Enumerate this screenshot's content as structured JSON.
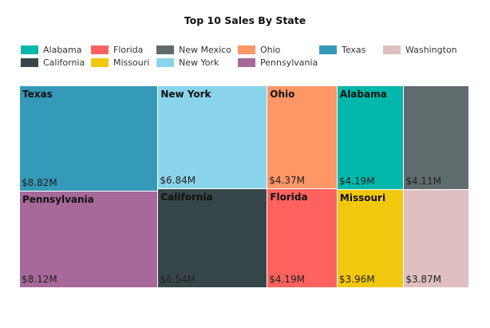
{
  "chart_data": {
    "type": "treemap",
    "title": "Top 10 Sales By State",
    "legend_position": "top-left",
    "legend_order": [
      "Alabama",
      "Florida",
      "New Mexico",
      "Ohio",
      "Texas",
      "Washington",
      "California",
      "Missouri",
      "New York",
      "Pennsylvania"
    ],
    "items": [
      {
        "name": "Texas",
        "value": 8.82,
        "label": "$8.82M",
        "color": "#3599b8",
        "show_name": true
      },
      {
        "name": "Pennsylvania",
        "value": 8.12,
        "label": "$8.12M",
        "color": "#a66999",
        "show_name": true
      },
      {
        "name": "New York",
        "value": 6.84,
        "label": "$6.84M",
        "color": "#8ad4eb",
        "show_name": true
      },
      {
        "name": "California",
        "value": 6.54,
        "label": "$6.54M",
        "color": "#374649",
        "show_name": true
      },
      {
        "name": "Ohio",
        "value": 4.37,
        "label": "$4.37M",
        "color": "#fe9666",
        "show_name": true
      },
      {
        "name": "Florida",
        "value": 4.19,
        "label": "$4.19M",
        "color": "#fd625e",
        "show_name": true
      },
      {
        "name": "Alabama",
        "value": 4.19,
        "label": "$4.19M",
        "color": "#01b8aa",
        "show_name": true
      },
      {
        "name": "Missouri",
        "value": 3.96,
        "label": "$3.96M",
        "color": "#f2c80f",
        "show_name": true
      },
      {
        "name": "New Mexico",
        "value": 4.11,
        "label": "$4.11M",
        "color": "#5f6b6d",
        "show_name": false
      },
      {
        "name": "Washington",
        "value": 3.87,
        "label": "$3.87M",
        "color": "#dfbfbf",
        "show_name": false
      }
    ]
  }
}
